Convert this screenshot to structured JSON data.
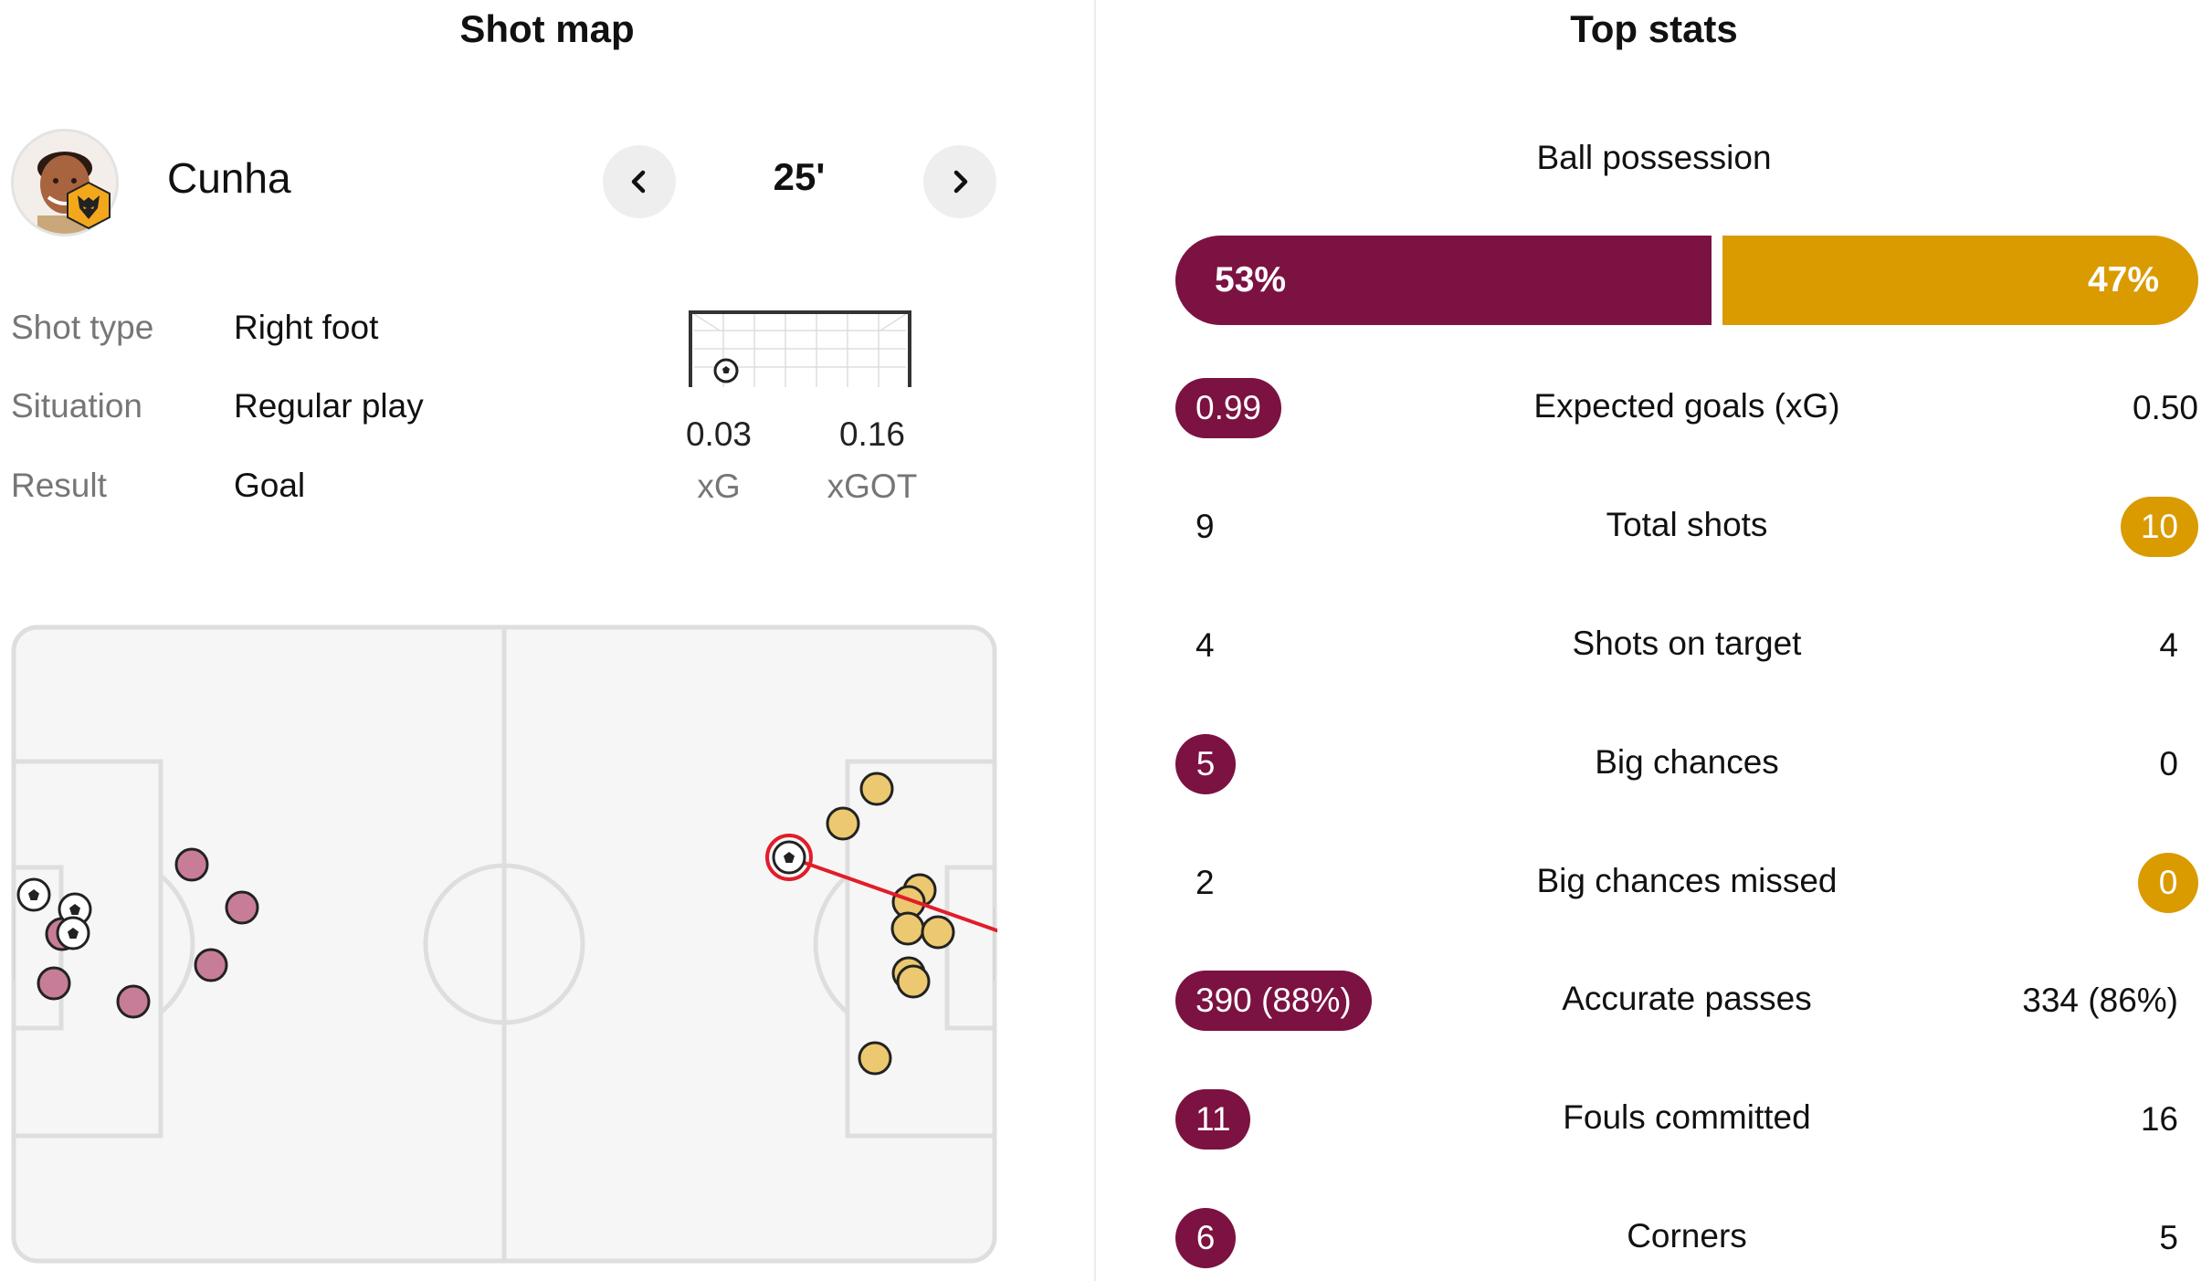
{
  "shot_map": {
    "title": "Shot map",
    "player": {
      "name": "Cunha",
      "minute": "25'"
    },
    "details": [
      {
        "label": "Shot type",
        "value": "Right foot"
      },
      {
        "label": "Situation",
        "value": "Regular play"
      },
      {
        "label": "Result",
        "value": "Goal"
      }
    ],
    "xg": {
      "value": "0.03",
      "label": "xG"
    },
    "xgot": {
      "value": "0.16",
      "label": "xGOT"
    },
    "colors": {
      "home_shot": "#c77d97",
      "away_shot": "#ecc870",
      "selected_ring": "#e11d2a"
    }
  },
  "top_stats": {
    "title": "Top stats",
    "possession": {
      "label": "Ball possession",
      "home": "53%",
      "away": "47%",
      "home_fraction": 0.53
    },
    "rows": [
      {
        "label": "Expected goals (xG)",
        "home": "0.99",
        "away": "0.50",
        "highlight": "home"
      },
      {
        "label": "Total shots",
        "home": "9",
        "away": "10",
        "highlight": "away"
      },
      {
        "label": "Shots on target",
        "home": "4",
        "away": "4",
        "highlight": "none"
      },
      {
        "label": "Big chances",
        "home": "5",
        "away": "0",
        "highlight": "home"
      },
      {
        "label": "Big chances missed",
        "home": "2",
        "away": "0",
        "highlight": "away"
      },
      {
        "label": "Accurate passes",
        "home": "390 (88%)",
        "away": "334 (86%)",
        "highlight": "home"
      },
      {
        "label": "Fouls committed",
        "home": "11",
        "away": "16",
        "highlight": "home"
      },
      {
        "label": "Corners",
        "home": "6",
        "away": "5",
        "highlight": "home"
      }
    ],
    "colors": {
      "home": "#7b1241",
      "away": "#d99b00"
    }
  }
}
